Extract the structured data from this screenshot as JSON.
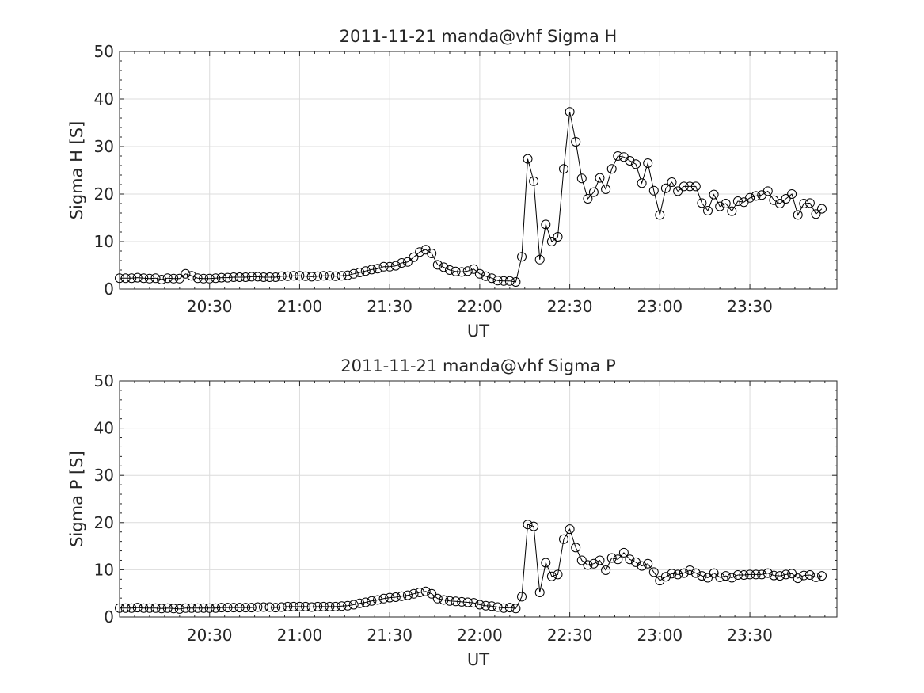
{
  "chart_data": [
    {
      "type": "line",
      "title": "2011-11-21  manda@vhf Sigma H",
      "xlabel": "UT",
      "ylabel": "Sigma H [S]",
      "ylim": [
        0,
        50
      ],
      "yticks": [
        0,
        10,
        20,
        30,
        40,
        50
      ],
      "xlim_minutes": [
        1200,
        1439
      ],
      "xticks": [
        {
          "label": "20:30",
          "minutes": 1230
        },
        {
          "label": "21:00",
          "minutes": 1260
        },
        {
          "label": "21:30",
          "minutes": 1290
        },
        {
          "label": "22:00",
          "minutes": 1320
        },
        {
          "label": "22:30",
          "minutes": 1350
        },
        {
          "label": "23:00",
          "minutes": 1380
        },
        {
          "label": "23:30",
          "minutes": 1410
        }
      ],
      "grid": true,
      "marker": "open-circle",
      "line_color": "#000000",
      "x_start_minutes": 1200,
      "x_step_minutes": 2,
      "values": [
        2.3,
        2.3,
        2.3,
        2.4,
        2.3,
        2.2,
        2.3,
        2.0,
        2.3,
        2.2,
        2.2,
        3.2,
        2.8,
        2.3,
        2.2,
        2.2,
        2.3,
        2.4,
        2.4,
        2.5,
        2.5,
        2.5,
        2.6,
        2.6,
        2.5,
        2.5,
        2.5,
        2.7,
        2.7,
        2.8,
        2.8,
        2.7,
        2.6,
        2.7,
        2.8,
        2.8,
        2.7,
        2.8,
        2.9,
        3.2,
        3.5,
        3.8,
        4.1,
        4.3,
        4.7,
        4.7,
        4.9,
        5.5,
        5.7,
        6.7,
        7.8,
        8.3,
        7.5,
        5.1,
        4.6,
        4.0,
        3.7,
        3.6,
        3.8,
        4.2,
        3.2,
        2.7,
        2.3,
        1.8,
        1.7,
        1.7,
        1.5,
        6.8,
        27.4,
        22.7,
        6.2,
        13.6,
        10.0,
        11.0,
        25.3,
        37.3,
        31.0,
        23.3,
        19.0,
        20.4,
        23.4,
        21.0,
        25.3,
        28.0,
        27.8,
        27.0,
        26.3,
        22.3,
        26.5,
        20.7,
        15.6,
        21.2,
        22.5,
        20.6,
        21.6,
        21.6,
        21.6,
        18.1,
        16.5,
        19.9,
        17.4,
        18.0,
        16.4,
        18.5,
        18.3,
        19.2,
        19.6,
        19.8,
        20.6,
        18.7,
        18.0,
        19.0,
        20.0,
        15.6,
        18.0,
        18.1,
        15.8,
        16.9
      ]
    },
    {
      "type": "line",
      "title": "2011-11-21  manda@vhf Sigma P",
      "xlabel": "UT",
      "ylabel": "Sigma P [S]",
      "ylim": [
        0,
        50
      ],
      "yticks": [
        0,
        10,
        20,
        30,
        40,
        50
      ],
      "xlim_minutes": [
        1200,
        1439
      ],
      "xticks": [
        {
          "label": "20:30",
          "minutes": 1230
        },
        {
          "label": "21:00",
          "minutes": 1260
        },
        {
          "label": "21:30",
          "minutes": 1290
        },
        {
          "label": "22:00",
          "minutes": 1320
        },
        {
          "label": "22:30",
          "minutes": 1350
        },
        {
          "label": "23:00",
          "minutes": 1380
        },
        {
          "label": "23:30",
          "minutes": 1410
        }
      ],
      "grid": true,
      "marker": "open-circle",
      "line_color": "#000000",
      "x_start_minutes": 1200,
      "x_step_minutes": 2,
      "values": [
        1.9,
        1.9,
        1.9,
        2.0,
        1.9,
        1.9,
        1.9,
        1.8,
        1.9,
        1.8,
        1.7,
        1.9,
        1.9,
        1.9,
        1.9,
        1.9,
        1.9,
        2.0,
        2.0,
        2.0,
        2.0,
        2.0,
        2.0,
        2.1,
        2.1,
        2.1,
        2.0,
        2.1,
        2.2,
        2.2,
        2.2,
        2.2,
        2.1,
        2.2,
        2.2,
        2.2,
        2.2,
        2.3,
        2.4,
        2.6,
        2.9,
        3.1,
        3.4,
        3.6,
        3.9,
        4.1,
        4.2,
        4.4,
        4.6,
        4.9,
        5.2,
        5.4,
        4.9,
        3.9,
        3.6,
        3.4,
        3.3,
        3.2,
        3.1,
        3.0,
        2.6,
        2.4,
        2.3,
        2.1,
        1.9,
        2.0,
        1.8,
        4.3,
        19.6,
        19.2,
        5.2,
        11.5,
        8.6,
        9.0,
        16.5,
        18.6,
        14.7,
        12.0,
        11.0,
        11.3,
        12.0,
        9.9,
        12.5,
        12.2,
        13.6,
        12.2,
        11.6,
        10.8,
        11.3,
        9.5,
        7.7,
        8.5,
        9.2,
        9.0,
        9.3,
        9.9,
        9.3,
        8.7,
        8.3,
        9.3,
        8.4,
        8.7,
        8.3,
        8.9,
        8.9,
        9.0,
        9.0,
        9.0,
        9.3,
        8.8,
        8.7,
        9.0,
        9.2,
        8.2,
        8.8,
        8.9,
        8.4,
        8.7
      ]
    }
  ]
}
